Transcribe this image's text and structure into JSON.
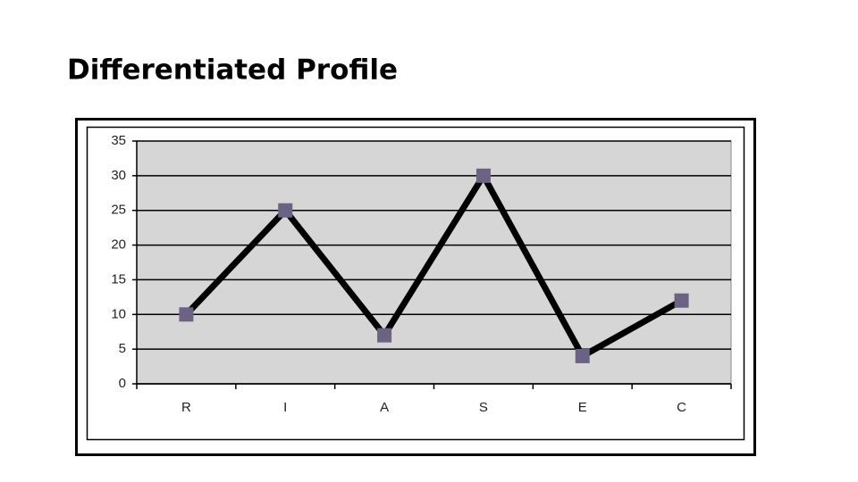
{
  "chart_data": {
    "type": "line",
    "title": "Differentiated Profile",
    "categories": [
      "R",
      "I",
      "A",
      "S",
      "E",
      "C"
    ],
    "values": [
      10,
      25,
      7,
      30,
      4,
      12
    ],
    "color": "#000000",
    "marker_color": "#6b6284",
    "plot_background": "#d6d6d6",
    "ylim": [
      0,
      35
    ],
    "yticks": [
      0,
      5,
      10,
      15,
      20,
      25,
      30,
      35
    ],
    "grid": true
  }
}
